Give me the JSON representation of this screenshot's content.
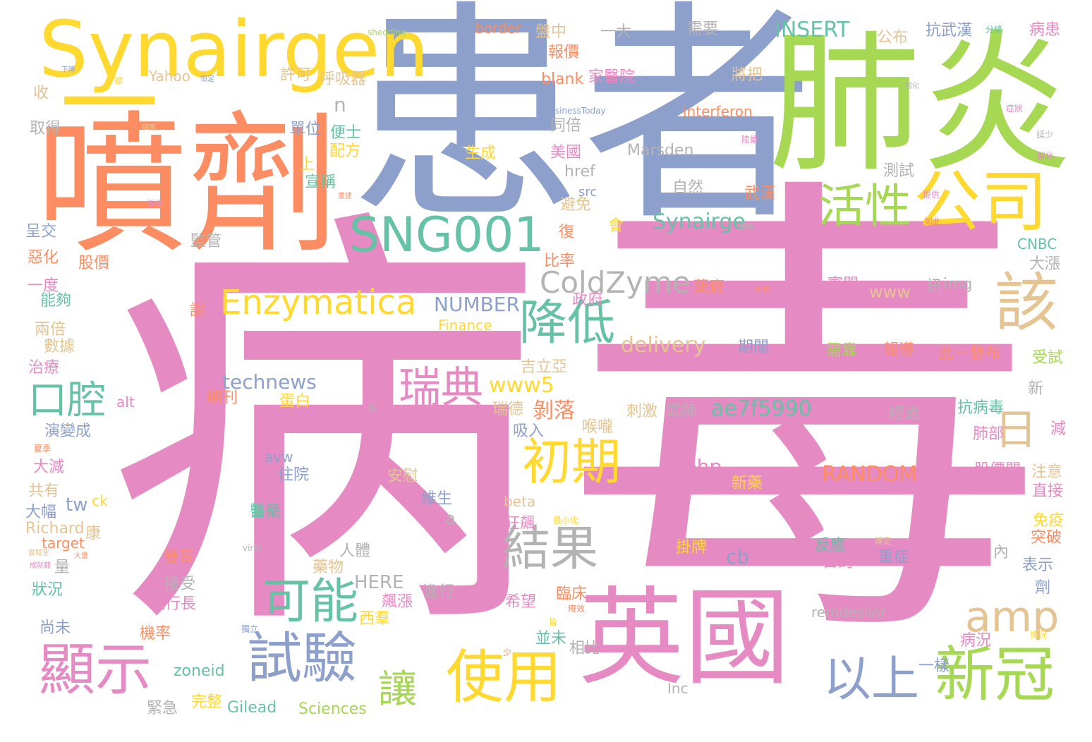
{
  "palette": {
    "pink": "#e58ac3",
    "blue": "#8da0cb",
    "green": "#a6d854",
    "orange": "#fc8d62",
    "yellow": "#ffd92f",
    "teal": "#66c2a5",
    "tan": "#e5c494",
    "gray": "#b3b3b3"
  },
  "words": [
    {
      "text": "病",
      "color": "pink"
    },
    {
      "text": "毒",
      "color": "pink"
    },
    {
      "text": "患者",
      "color": "blue"
    },
    {
      "text": "肺炎",
      "color": "green"
    },
    {
      "text": "噴劑",
      "color": "orange"
    },
    {
      "text": "Synairgen",
      "color": "yellow"
    },
    {
      "text": "一",
      "color": "yellow"
    },
    {
      "text": "英國",
      "color": "pink"
    },
    {
      "text": "SNG001",
      "color": "teal"
    },
    {
      "text": "公司",
      "color": "yellow"
    },
    {
      "text": "活性",
      "color": "green"
    },
    {
      "text": "該",
      "color": "tan"
    },
    {
      "text": "日",
      "color": "tan"
    },
    {
      "text": "Enzymatica",
      "color": "yellow"
    },
    {
      "text": "降低",
      "color": "teal"
    },
    {
      "text": "ColdZyme",
      "color": "gray"
    },
    {
      "text": "口腔",
      "color": "teal"
    },
    {
      "text": "瑞典",
      "color": "pink"
    },
    {
      "text": "初期",
      "color": "yellow"
    },
    {
      "text": "結果",
      "color": "gray"
    },
    {
      "text": "可能",
      "color": "teal"
    },
    {
      "text": "amp",
      "color": "tan"
    },
    {
      "text": "顯示",
      "color": "pink"
    },
    {
      "text": "試驗",
      "color": "blue"
    },
    {
      "text": "使用",
      "color": "yellow"
    },
    {
      "text": "以上",
      "color": "blue"
    },
    {
      "text": "新冠",
      "color": "green"
    },
    {
      "text": "讓",
      "color": "green"
    },
    {
      "text": "INSERT",
      "color": "teal"
    },
    {
      "text": "Synairge",
      "color": "teal"
    },
    {
      "text": "NUMBER",
      "color": "blue"
    },
    {
      "text": "delivery",
      "color": "tan"
    },
    {
      "text": "technews",
      "color": "blue"
    },
    {
      "text": "www5",
      "color": "yellow"
    },
    {
      "text": "ae7f5990",
      "color": "teal"
    },
    {
      "text": "RANDOM",
      "color": "orange"
    },
    {
      "text": "interferon",
      "color": "orange"
    },
    {
      "text": "Marsden",
      "color": "gray"
    },
    {
      "text": "HERE",
      "color": "gray"
    },
    {
      "text": "remdesivir",
      "color": "gray"
    },
    {
      "text": "Sciences",
      "color": "green"
    },
    {
      "text": "Gilead",
      "color": "teal"
    },
    {
      "text": "zoneid",
      "color": "teal"
    },
    {
      "text": "Richard",
      "color": "tan"
    },
    {
      "text": "target",
      "color": "orange"
    },
    {
      "text": "Yahoo",
      "color": "tan"
    },
    {
      "text": "border",
      "color": "orange"
    },
    {
      "text": "blank",
      "color": "orange"
    },
    {
      "text": "Finance",
      "color": "yellow"
    },
    {
      "text": "CNBC",
      "color": "teal"
    },
    {
      "text": "shedding",
      "color": "green"
    },
    {
      "text": "BusinessToday",
      "color": "blue"
    },
    {
      "text": "href",
      "color": "gray"
    },
    {
      "text": "src",
      "color": "blue"
    },
    {
      "text": "img",
      "color": "gray"
    },
    {
      "text": "www",
      "color": "tan"
    },
    {
      "text": "php",
      "color": "pink"
    },
    {
      "text": "avw",
      "color": "blue"
    },
    {
      "text": "beta",
      "color": "tan"
    },
    {
      "text": "alt",
      "color": "pink"
    },
    {
      "text": "tw",
      "color": "blue"
    },
    {
      "text": "ck",
      "color": "yellow"
    },
    {
      "text": "cb",
      "color": "blue"
    },
    {
      "text": "a",
      "color": "gray"
    },
    {
      "text": "n",
      "color": "gray"
    },
    {
      "text": "Inc",
      "color": "gray"
    },
    {
      "text": "viral",
      "color": "gray"
    },
    {
      "text": "盤中",
      "color": "tan"
    },
    {
      "text": "一大",
      "color": "gray"
    },
    {
      "text": "需要",
      "color": "gray"
    },
    {
      "text": "抗武漢",
      "color": "blue"
    },
    {
      "text": "病患",
      "color": "pink"
    },
    {
      "text": "分條",
      "color": "teal"
    },
    {
      "text": "公布",
      "color": "tan"
    },
    {
      "text": "報價",
      "color": "orange"
    },
    {
      "text": "家醫院",
      "color": "pink"
    },
    {
      "text": "將把",
      "color": "tan"
    },
    {
      "text": "許可",
      "color": "tan"
    },
    {
      "text": "呼吸器",
      "color": "tan"
    },
    {
      "text": "收",
      "color": "tan"
    },
    {
      "text": "取得",
      "color": "gray"
    },
    {
      "text": "單位",
      "color": "blue"
    },
    {
      "text": "便士",
      "color": "teal"
    },
    {
      "text": "配方",
      "color": "yellow"
    },
    {
      "text": "同倍",
      "color": "gray"
    },
    {
      "text": "美國",
      "color": "pink"
    },
    {
      "text": "生成",
      "color": "yellow"
    },
    {
      "text": "宣稱",
      "color": "teal"
    },
    {
      "text": "上",
      "color": "yellow"
    },
    {
      "text": "武漢",
      "color": "orange"
    },
    {
      "text": "測試",
      "color": "gray"
    },
    {
      "text": "自然",
      "color": "gray"
    },
    {
      "text": "避免",
      "color": "tan"
    },
    {
      "text": "復",
      "color": "orange"
    },
    {
      "text": "會",
      "color": "yellow"
    },
    {
      "text": "監管",
      "color": "gray"
    },
    {
      "text": "呈交",
      "color": "blue"
    },
    {
      "text": "惡化",
      "color": "orange"
    },
    {
      "text": "股價",
      "color": "orange"
    },
    {
      "text": "比率",
      "color": "orange"
    },
    {
      "text": "一度",
      "color": "pink"
    },
    {
      "text": "能夠",
      "color": "teal"
    },
    {
      "text": "政府",
      "color": "pink"
    },
    {
      "text": "藥廠",
      "color": "orange"
    },
    {
      "text": "審閱",
      "color": "pink"
    },
    {
      "text": "訊",
      "color": "gray"
    },
    {
      "text": "大漲",
      "color": "gray"
    },
    {
      "text": "兩倍",
      "color": "tan"
    },
    {
      "text": "數據",
      "color": "tan"
    },
    {
      "text": "治療",
      "color": "pink"
    },
    {
      "text": "期間",
      "color": "blue"
    },
    {
      "text": "需靠",
      "color": "green"
    },
    {
      "text": "報導",
      "color": "orange"
    },
    {
      "text": "此一發布",
      "color": "orange"
    },
    {
      "text": "受試",
      "color": "green"
    },
    {
      "text": "吉立亞",
      "color": "tan"
    },
    {
      "text": "新",
      "color": "gray"
    },
    {
      "text": "期刊",
      "color": "orange"
    },
    {
      "text": "蛋白",
      "color": "yellow"
    },
    {
      "text": "名",
      "color": "pink"
    },
    {
      "text": "瑞德",
      "color": "tan"
    },
    {
      "text": "剝落",
      "color": "orange"
    },
    {
      "text": "刺激",
      "color": "tan"
    },
    {
      "text": "武肺",
      "color": "gray"
    },
    {
      "text": "該療法",
      "color": "pink"
    },
    {
      "text": "經過",
      "color": "gray"
    },
    {
      "text": "抗病毒",
      "color": "teal"
    },
    {
      "text": "吸入",
      "color": "blue"
    },
    {
      "text": "喉嚨",
      "color": "tan"
    },
    {
      "text": "肺部",
      "color": "pink"
    },
    {
      "text": "減",
      "color": "pink"
    },
    {
      "text": "演變成",
      "color": "blue"
    },
    {
      "text": "大減",
      "color": "pink"
    },
    {
      "text": "住院",
      "color": "blue"
    },
    {
      "text": "安慰",
      "color": "tan"
    },
    {
      "text": "新藥",
      "color": "yellow"
    },
    {
      "text": "股價間",
      "color": "pink"
    },
    {
      "text": "注意",
      "color": "tan"
    },
    {
      "text": "共有",
      "color": "tan"
    },
    {
      "text": "對",
      "color": "pink"
    },
    {
      "text": "維生",
      "color": "blue"
    },
    {
      "text": "直接",
      "color": "pink"
    },
    {
      "text": "大幅",
      "color": "blue"
    },
    {
      "text": "醫藥",
      "color": "teal"
    },
    {
      "text": "狂飆",
      "color": "pink"
    },
    {
      "text": "康",
      "color": "tan"
    },
    {
      "text": "掛牌",
      "color": "yellow"
    },
    {
      "text": "反應",
      "color": "teal"
    },
    {
      "text": "重症",
      "color": "blue"
    },
    {
      "text": "免疫",
      "color": "yellow"
    },
    {
      "text": "突破",
      "color": "orange"
    },
    {
      "text": "量",
      "color": "gray"
    },
    {
      "text": "人體",
      "color": "gray"
    },
    {
      "text": "目的",
      "color": "pink"
    },
    {
      "text": "內",
      "color": "gray"
    },
    {
      "text": "表示",
      "color": "blue"
    },
    {
      "text": "狀況",
      "color": "teal"
    },
    {
      "text": "接受",
      "color": "gray"
    },
    {
      "text": "雙盲",
      "color": "orange"
    },
    {
      "text": "藥物",
      "color": "tan"
    },
    {
      "text": "劑",
      "color": "blue"
    },
    {
      "text": "進行",
      "color": "gray"
    },
    {
      "text": "臨床",
      "color": "orange"
    },
    {
      "text": "執行長",
      "color": "pink"
    },
    {
      "text": "希望",
      "color": "pink"
    },
    {
      "text": "飆漲",
      "color": "pink"
    },
    {
      "text": "西羣",
      "color": "yellow"
    },
    {
      "text": "尚未",
      "color": "blue"
    },
    {
      "text": "機率",
      "color": "orange"
    },
    {
      "text": "並未",
      "color": "teal"
    },
    {
      "text": "相比",
      "color": "gray"
    },
    {
      "text": "病況",
      "color": "pink"
    },
    {
      "text": "一樣",
      "color": "blue"
    },
    {
      "text": "緊急",
      "color": "gray"
    },
    {
      "text": "完整",
      "color": "yellow"
    },
    {
      "text": "說",
      "color": "orange"
    },
    {
      "text": "少",
      "color": "orange"
    },
    {
      "text": "隨",
      "color": "gray"
    },
    {
      "text": "皆",
      "color": "yellow"
    },
    {
      "text": "夏季",
      "color": "orange"
    },
    {
      "text": "實驗室",
      "color": "tan"
    },
    {
      "text": "大量",
      "color": "orange"
    },
    {
      "text": "成就都",
      "color": "pink"
    },
    {
      "text": "下降",
      "color": "blue"
    },
    {
      "text": "可能從",
      "color": "pink"
    },
    {
      "text": "被",
      "color": "yellow"
    },
    {
      "text": "弱化",
      "color": "gray"
    },
    {
      "text": "延少",
      "color": "gray"
    },
    {
      "text": "細應",
      "color": "tan"
    },
    {
      "text": "恒定",
      "color": "blue"
    },
    {
      "text": "隔離",
      "color": "gray"
    },
    {
      "text": "不夠",
      "color": "orange"
    },
    {
      "text": "確定",
      "color": "tan"
    },
    {
      "text": "最小化",
      "color": "yellow"
    },
    {
      "text": "獨立",
      "color": "blue"
    },
    {
      "text": "情況",
      "color": "yellow"
    },
    {
      "text": "療效",
      "color": "orange"
    },
    {
      "text": "重建",
      "color": "orange"
    },
    {
      "text": "陸續",
      "color": "pink"
    },
    {
      "text": "嚴重",
      "color": "pink"
    },
    {
      "text": "如此",
      "color": "orange"
    },
    {
      "text": "催化",
      "color": "pink"
    },
    {
      "text": "提供",
      "color": "pink"
    },
    {
      "text": "症狀",
      "color": "pink"
    },
    {
      "text": "大規模",
      "color": "pink"
    },
    {
      "text": "早期",
      "color": "pink"
    }
  ]
}
